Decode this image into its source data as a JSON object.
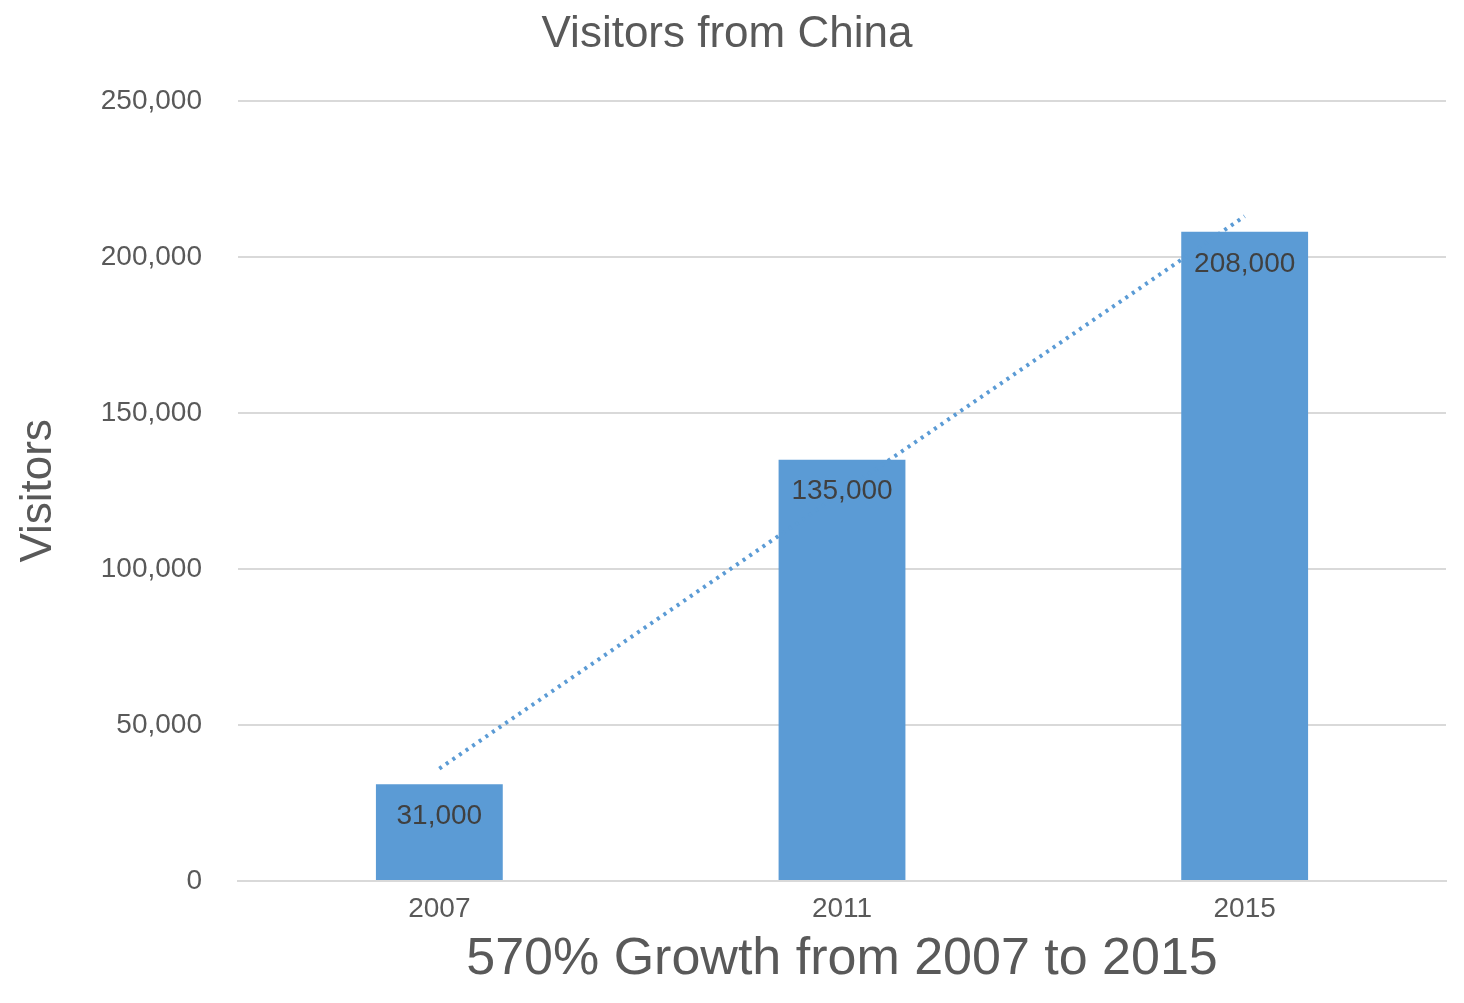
{
  "chart_data": {
    "type": "bar",
    "title": "Visitors from China",
    "xlabel": "570% Growth from 2007 to 2015",
    "ylabel": "Visitors",
    "categories": [
      "2007",
      "2011",
      "2015"
    ],
    "series": [
      {
        "color": "#5b9bd5",
        "values": [
          31000,
          135000,
          208000
        ],
        "value_labels": [
          "31,000",
          "135,000",
          "208,000"
        ]
      },
      {
        "type": "line",
        "color": "#5b9bd5",
        "values": [
          36000,
          null,
          213000
        ],
        "line_style": "dotted",
        "marker": "none"
      }
    ],
    "ylim": [
      0,
      250000
    ],
    "yticks": [
      {
        "value": 0,
        "label": "0"
      },
      {
        "value": 50000,
        "label": "50,000"
      },
      {
        "value": 100000,
        "label": "100,000"
      },
      {
        "value": 150000,
        "label": "150,000"
      },
      {
        "value": 200000,
        "label": "200,000"
      },
      {
        "value": 250000,
        "label": "250,000"
      }
    ],
    "grid": "y"
  }
}
